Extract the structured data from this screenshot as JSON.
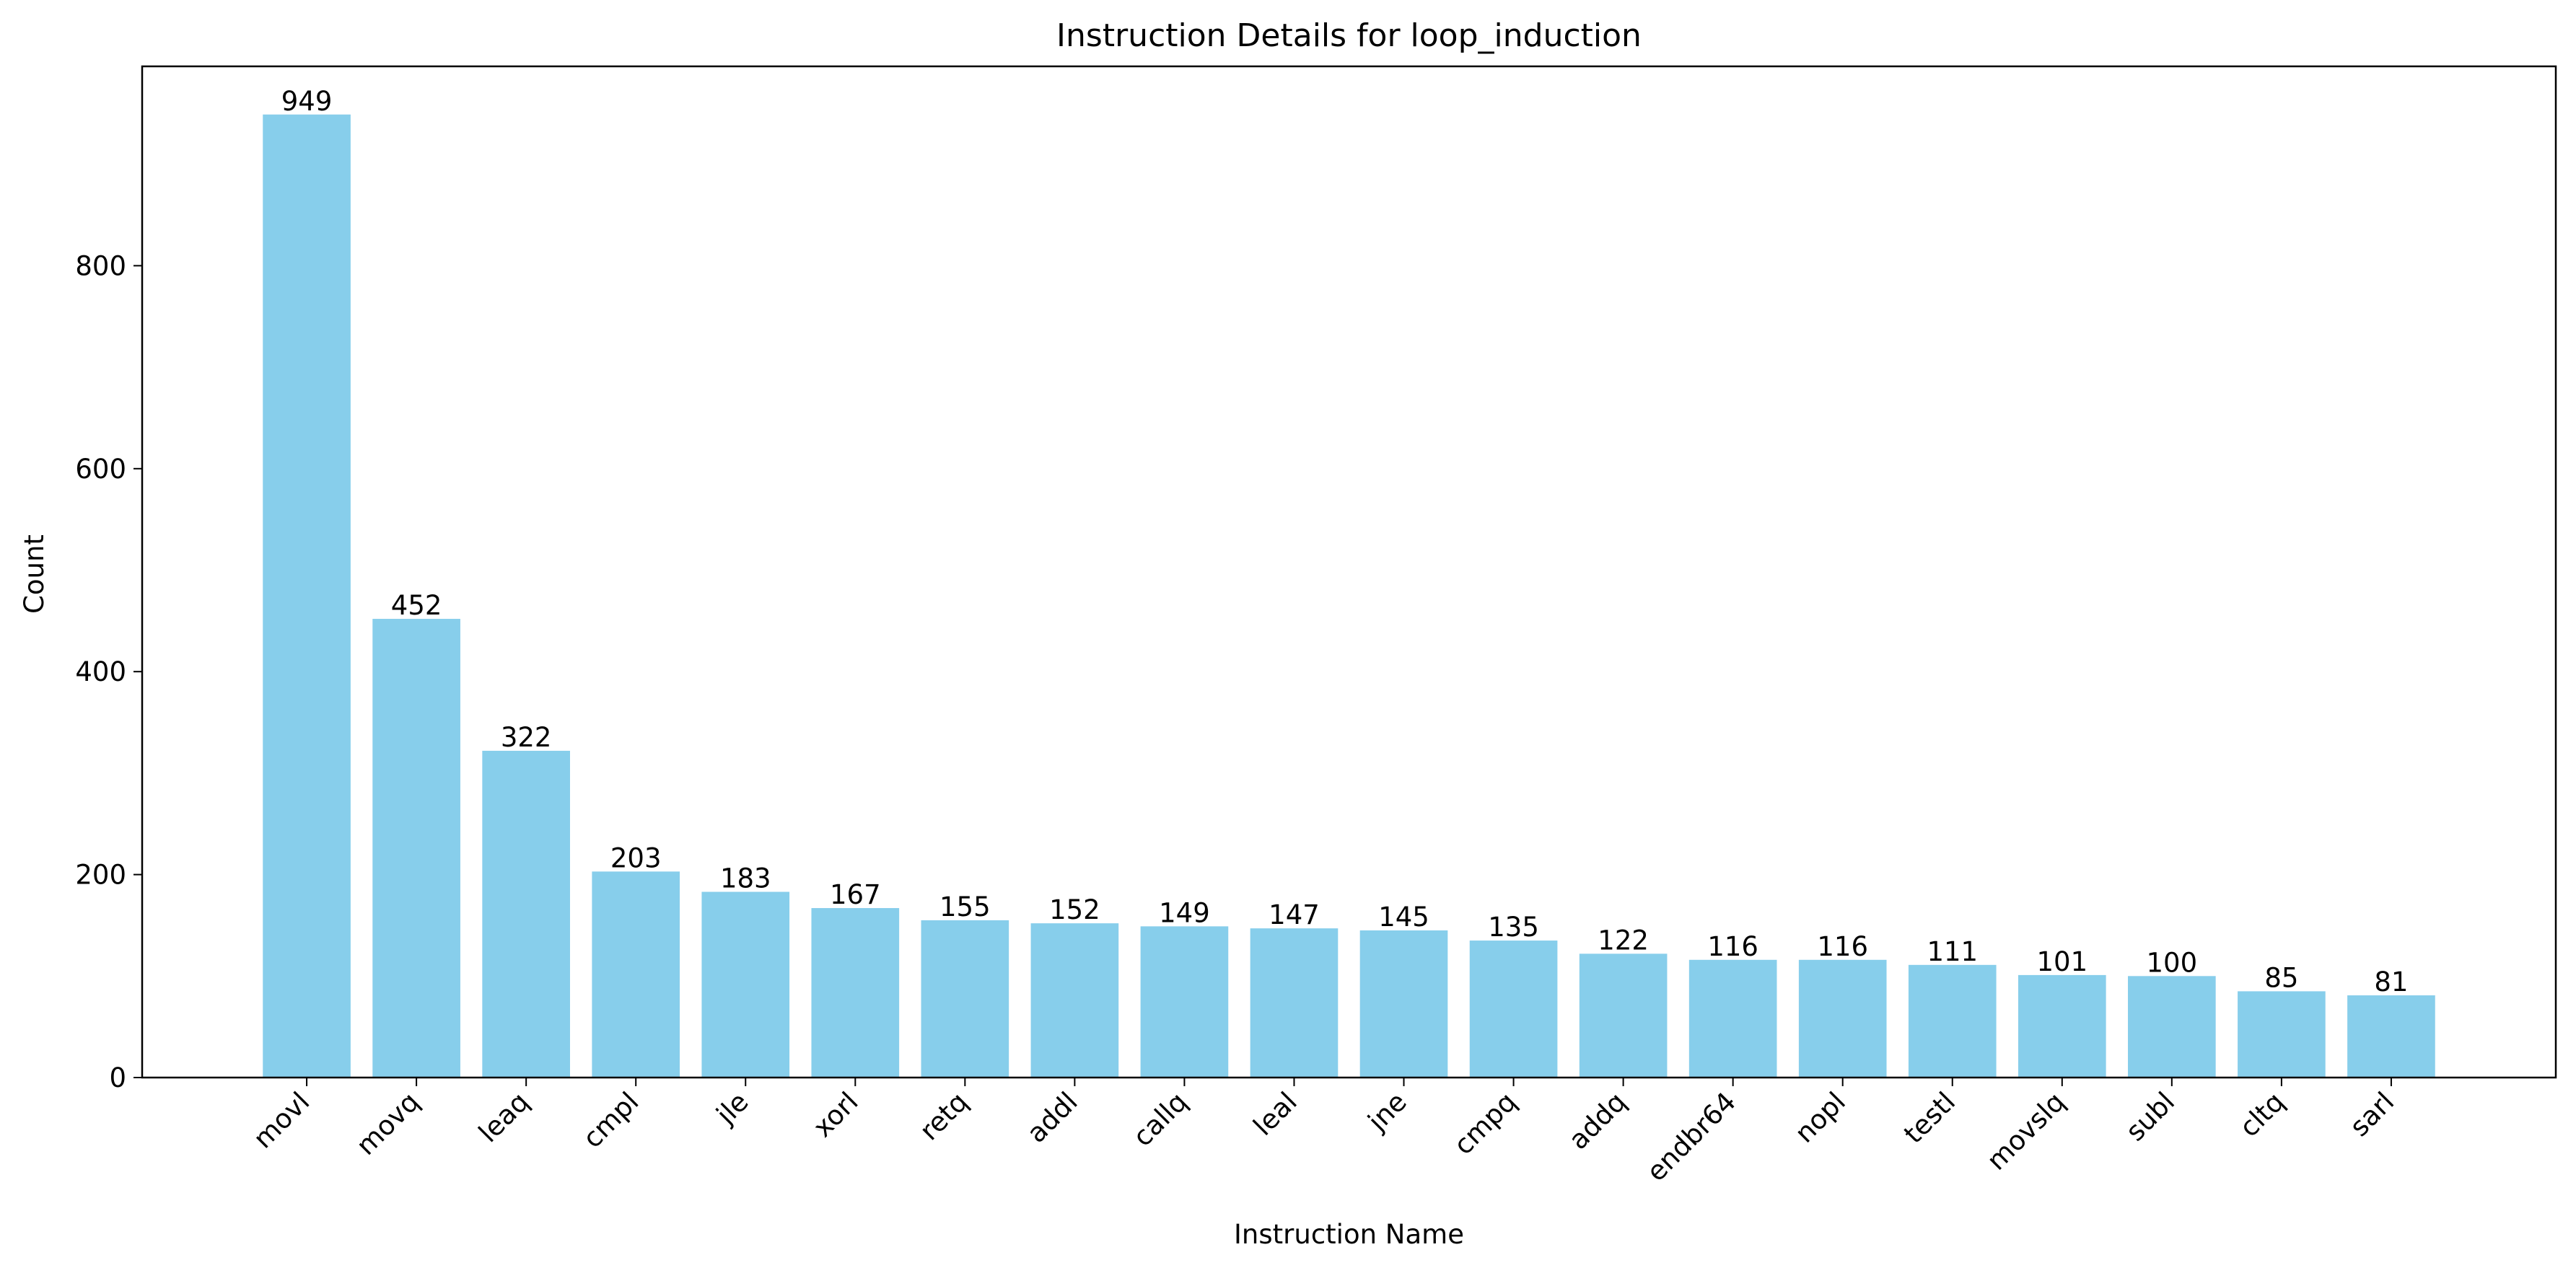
{
  "chart_data": {
    "type": "bar",
    "title": "Instruction Details for loop_induction",
    "xlabel": "Instruction Name",
    "ylabel": "Count",
    "categories": [
      "movl",
      "movq",
      "leaq",
      "cmpl",
      "jle",
      "xorl",
      "retq",
      "addl",
      "callq",
      "leal",
      "jne",
      "cmpq",
      "addq",
      "endbr64",
      "nopl",
      "testl",
      "movslq",
      "subl",
      "cltq",
      "sarl"
    ],
    "values": [
      949,
      452,
      322,
      203,
      183,
      167,
      155,
      152,
      149,
      147,
      145,
      135,
      122,
      116,
      116,
      111,
      101,
      100,
      85,
      81
    ],
    "ylim": [
      0,
      996.45
    ],
    "yticks": [
      0,
      200,
      400,
      600,
      800
    ],
    "bar_color": "#87ceeb",
    "grid": false,
    "legend": false,
    "data_labels": true,
    "xtick_rotation": 45
  }
}
